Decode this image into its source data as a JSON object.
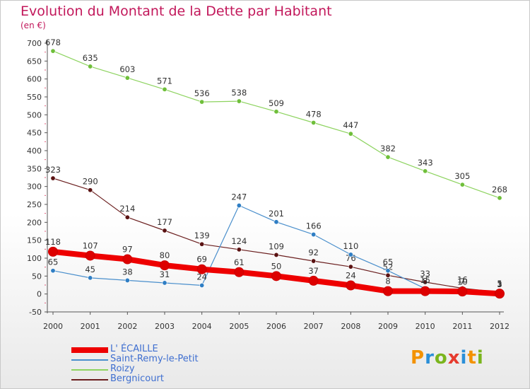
{
  "title": "Evolution du Montant de la Dette par Habitant",
  "subtitle": "(en €)",
  "legend": [
    {
      "label": "L' ÉCAILLE",
      "color": "#ee0000"
    },
    {
      "label": "Saint-Remy-le-Petit",
      "color": "#4a8fcc"
    },
    {
      "label": "Roizy",
      "color": "#8dd35f"
    },
    {
      "label": "Bergnicourt",
      "color": "#6b1f1f"
    }
  ],
  "logo": {
    "letters": [
      "P",
      "r",
      "o",
      "x",
      "i",
      "t",
      "i"
    ]
  },
  "chart_data": {
    "type": "line",
    "title": "Evolution du Montant de la Dette par Habitant",
    "subtitle": "(en €)",
    "x": [
      "2000",
      "2001",
      "2002",
      "2003",
      "2004",
      "2005",
      "2006",
      "2007",
      "2008",
      "2009",
      "2010",
      "2011",
      "2012"
    ],
    "ylim": [
      -50,
      700
    ],
    "yticks": [
      -50,
      0,
      50,
      100,
      150,
      200,
      250,
      300,
      350,
      400,
      450,
      500,
      550,
      600,
      650,
      700
    ],
    "grid": false,
    "legend_position": "bottom-left",
    "series": [
      {
        "name": "Roizy",
        "color": "#8dd35f",
        "marker": "#6fbf3a",
        "width": 1.2,
        "values": [
          678,
          635,
          603,
          571,
          536,
          538,
          509,
          478,
          447,
          382,
          343,
          305,
          268
        ],
        "labels": [
          "678",
          "635",
          "603",
          "571",
          "536",
          "538",
          "509",
          "478",
          "447",
          "382",
          "343",
          "305",
          "268"
        ]
      },
      {
        "name": "Bergnicourt",
        "color": "#6b1f1f",
        "marker": "#5a1212",
        "width": 1.2,
        "values": [
          323,
          290,
          214,
          177,
          139,
          124,
          109,
          92,
          76,
          52,
          33,
          16,
          5
        ],
        "labels": [
          "323",
          "290",
          "214",
          "177",
          "139",
          "124",
          "109",
          "92",
          "76",
          "52",
          "33",
          "16",
          "5"
        ]
      },
      {
        "name": "Saint-Remy-le-Petit",
        "color": "#4a8fcc",
        "marker": "#2f7ec4",
        "width": 1.2,
        "values": [
          65,
          45,
          38,
          31,
          24,
          247,
          201,
          166,
          110,
          65,
          15,
          10,
          3
        ],
        "labels": [
          "65",
          "45",
          "38",
          "31",
          "24",
          "247",
          "201",
          "166",
          "110",
          "65",
          "15",
          "10",
          "3"
        ]
      },
      {
        "name": "L' ÉCAILLE",
        "color": "#ee0000",
        "marker": "#dd0000",
        "width": 8,
        "values": [
          118,
          107,
          97,
          80,
          69,
          61,
          50,
          37,
          24,
          8,
          8,
          7,
          1
        ],
        "labels": [
          "118",
          "107",
          "97",
          "80",
          "69",
          "61",
          "50",
          "37",
          "24",
          "8",
          "8",
          "7",
          "1"
        ]
      }
    ]
  }
}
